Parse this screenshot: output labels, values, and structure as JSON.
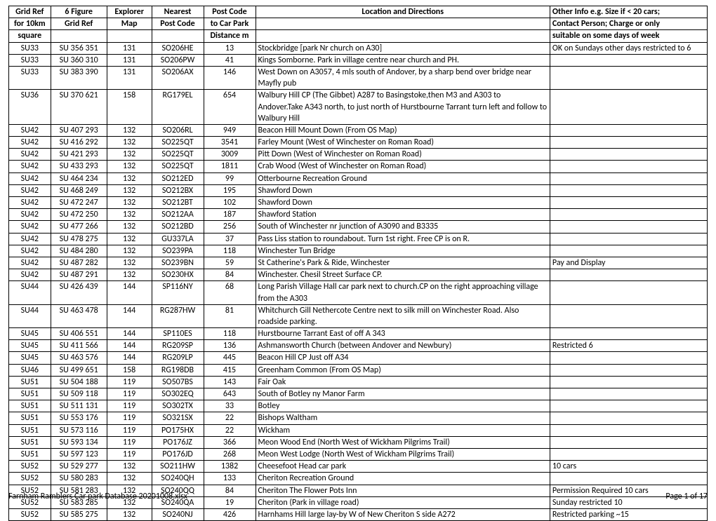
{
  "table": {
    "header_lines": [
      [
        "Grid Ref",
        "6 Figure",
        "Explorer",
        "Nearest",
        "Post Code",
        "Location and Directions",
        "Other Info e.g. Size if < 20 cars;"
      ],
      [
        "for 10km",
        "Grid Ref",
        "Map",
        "Post Code",
        "to Car Park",
        "",
        "Contact Person; Charge or only"
      ],
      [
        "square",
        "",
        "",
        "",
        "Distance m",
        "",
        "suitable on some days of week"
      ]
    ],
    "col_align": [
      "c",
      "c",
      "c",
      "c",
      "c",
      "l",
      "l"
    ],
    "rows": [
      [
        "SU33",
        "SU 356 351",
        "131",
        "SO206HE",
        "13",
        "Stockbridge [park Nr church on A30]",
        "OK on Sundays other days restricted to 6"
      ],
      [
        "SU33",
        "SU 360 310",
        "131",
        "SO206PW",
        "41",
        "Kings Somborne.  Park in village centre near church and PH.",
        ""
      ],
      [
        "SU33",
        "SU 383 390",
        "131",
        "SO206AX",
        "146",
        "West Down on A3057, 4 mls south of Andover, by a sharp bend over bridge near Mayfly pub",
        ""
      ],
      [
        "SU36",
        "SU 370 621",
        "158",
        "RG179EL",
        "654",
        "Walbury Hill CP (The Gibbet) A287 to Basingstoke,then M3 and  A303 to Andover.Take A343  north, to just north of Hurstbourne Tarrant turn left and follow to Walbury Hill",
        ""
      ],
      [
        "SU42",
        "SU 407 293",
        "132",
        "SO206RL",
        "949",
        "Beacon Hill Mount Down (From OS Map)",
        ""
      ],
      [
        "SU42",
        "SU 416 292",
        "132",
        "SO225QT",
        "3541",
        "Farley Mount (West of Winchester on Roman Road)",
        ""
      ],
      [
        "SU42",
        "SU 421 293",
        "132",
        "SO225QT",
        "3009",
        "Pitt Down (West of Winchester on Roman Road)",
        ""
      ],
      [
        "SU42",
        "SU 433 293",
        "132",
        "SO225QT",
        "1811",
        "Crab Wood (West of Winchester on Roman Road)",
        ""
      ],
      [
        "SU42",
        "SU 464 234",
        "132",
        "SO212ED",
        "99",
        "Otterbourne Recreation Ground",
        ""
      ],
      [
        "SU42",
        "SU 468 249",
        "132",
        "SO212BX",
        "195",
        "Shawford Down",
        ""
      ],
      [
        "SU42",
        "SU 472 247",
        "132",
        "SO212BT",
        "102",
        "Shawford Down",
        ""
      ],
      [
        "SU42",
        "SU 472 250",
        "132",
        "SO212AA",
        "187",
        "Shawford Station",
        ""
      ],
      [
        "SU42",
        "SU 477 266",
        "132",
        "SO212BD",
        "256",
        "South of Winchester nr junction of A3090 and B3335",
        ""
      ],
      [
        "SU42",
        "SU 478 275",
        "132",
        "GU337LA",
        "37",
        "Pass Liss station to roundabout. Turn 1st right. Free CP is on R.",
        ""
      ],
      [
        "SU42",
        "SU 484 280",
        "132",
        "SO239PA",
        "118",
        "Winchester Tun Bridge",
        ""
      ],
      [
        "SU42",
        "SU 487 282",
        "132",
        "SO239BN",
        "59",
        "St Catherine's Park & Ride, Winchester",
        "Pay and Display"
      ],
      [
        "SU42",
        "SU 487 291",
        "132",
        "SO230HX",
        "84",
        "Winchester.   Chesil Street Surface CP.",
        ""
      ],
      [
        "SU44",
        "SU 426 439",
        "144",
        "SP116NY",
        "68",
        "Long Parish Village Hall car park next to church.CP on the right approaching village from the A303",
        ""
      ],
      [
        "SU44",
        "SU 463 478",
        "144",
        "RG287HW",
        "81",
        "Whitchurch Gill Nethercote Centre next to silk mill on Winchester Road. Also roadside parking.",
        ""
      ],
      [
        "SU45",
        "SU 406 551",
        "144",
        "SP110ES",
        "118",
        "Hurstbourne Tarrant East of off A 343",
        ""
      ],
      [
        "SU45",
        "SU 411 566",
        "144",
        "RG209SP",
        "136",
        "Ashmansworth Church (between Andover and Newbury)",
        "Restricted 6"
      ],
      [
        "SU45",
        "SU 463 576",
        "144",
        "RG209LP",
        "445",
        "Beacon Hill CP Just off A34",
        ""
      ],
      [
        "SU46",
        "SU 499 651",
        "158",
        "RG198DB",
        "415",
        "Greenham Common (From OS Map)",
        ""
      ],
      [
        "SU51",
        "SU 504 188",
        "119",
        "SO507BS",
        "143",
        "Fair Oak",
        ""
      ],
      [
        "SU51",
        "SU 509 118",
        "119",
        "SO302EQ",
        "643",
        "South of Botley ny Manor Farm",
        ""
      ],
      [
        "SU51",
        "SU 511 131",
        "119",
        "SO302TX",
        "33",
        "Botley",
        ""
      ],
      [
        "SU51",
        "SU 553 176",
        "119",
        "SO321SX",
        "22",
        "Bishops Waltham",
        ""
      ],
      [
        "SU51",
        "SU 573 116",
        "119",
        "PO175HX",
        "22",
        "Wickham",
        ""
      ],
      [
        "SU51",
        "SU 593 134",
        "119",
        "PO176JZ",
        "366",
        "Meon Wood End (North West of Wickham Pilgrims Trail)",
        ""
      ],
      [
        "SU51",
        "SU 597 123",
        "119",
        "PO176JD",
        "268",
        "Meon West Lodge (North West of Wickham Pilgrims Trail)",
        ""
      ],
      [
        "SU52",
        "SU 529 277",
        "132",
        "SO211HW",
        "1382",
        "Cheesefoot Head car park",
        "10 cars"
      ],
      [
        "SU52",
        "SU 580 283",
        "132",
        "SO240QH",
        "133",
        "Cheriton Recreation Ground",
        ""
      ],
      [
        "SU52",
        "SU 581 283",
        "132",
        "SO240QQ",
        "84",
        "Cheriton The Flower Pots Inn",
        "Permission Required 10 cars"
      ],
      [
        "SU52",
        "SU 583 285",
        "132",
        "SO240QA",
        "19",
        "Cheriton (Park in village road)",
        "Sunday restricted 10"
      ],
      [
        "SU52",
        "SU 585 275",
        "132",
        "SO240NJ",
        "426",
        "Harnhams Hill large lay-by W of New Cheriton S side A272",
        "Restricted parking ~15"
      ]
    ]
  },
  "footer": {
    "left": "Farnham Ramblers Car park Database 20201008.xlsx",
    "right": "Page 1 of 17"
  },
  "style": {
    "font_family": "Calibri",
    "font_size_pt": 9,
    "border_color": "#000000",
    "background_color": "#ffffff",
    "text_color": "#000000"
  }
}
